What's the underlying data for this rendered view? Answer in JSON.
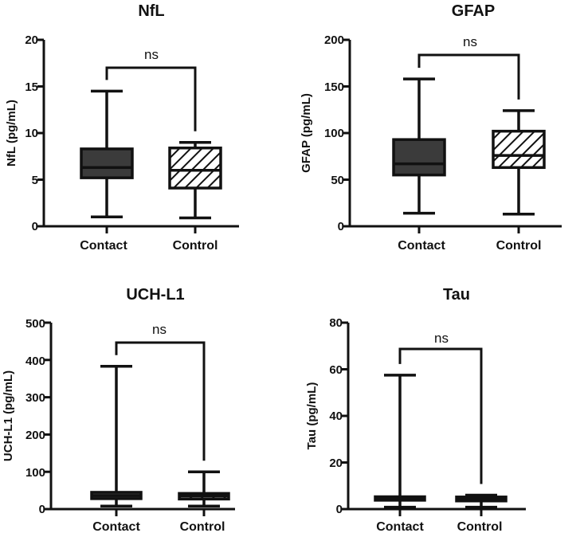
{
  "chart_data": [
    {
      "type": "boxplot",
      "title": "NfL",
      "ylabel": "NfL (pg/mL)",
      "ylim": [
        0,
        20
      ],
      "yticks": [
        0,
        5,
        10,
        15,
        20
      ],
      "ytick_labels": [
        "0",
        "5",
        "10",
        "15",
        "20"
      ],
      "categories": [
        "Contact",
        "Control"
      ],
      "boxes": [
        {
          "name": "Contact",
          "fill": "solid",
          "min": 1.0,
          "q1": 5.2,
          "median": 6.3,
          "q3": 8.3,
          "max": 14.5
        },
        {
          "name": "Control",
          "fill": "hatched",
          "min": 0.9,
          "q1": 4.1,
          "median": 6.0,
          "q3": 8.4,
          "max": 9.0
        }
      ],
      "significance": "ns"
    },
    {
      "type": "boxplot",
      "title": "GFAP",
      "ylabel": "GFAP (pg/mL)",
      "ylim": [
        0,
        200
      ],
      "yticks": [
        0,
        50,
        100,
        150,
        200
      ],
      "ytick_labels": [
        "0",
        "50",
        "100",
        "150",
        "200"
      ],
      "categories": [
        "Contact",
        "Control"
      ],
      "boxes": [
        {
          "name": "Contact",
          "fill": "solid",
          "min": 14,
          "q1": 55,
          "median": 67,
          "q3": 93,
          "max": 158
        },
        {
          "name": "Control",
          "fill": "hatched",
          "min": 13,
          "q1": 63,
          "median": 76,
          "q3": 102,
          "max": 124
        }
      ],
      "significance": "ns"
    },
    {
      "type": "boxplot",
      "title": "UCH-L1",
      "ylabel": "UCH-L1 (pg/mL)",
      "ylim": [
        0,
        500
      ],
      "yticks": [
        0,
        100,
        200,
        300,
        400,
        500
      ],
      "ytick_labels": [
        "0",
        "100",
        "200",
        "300",
        "400",
        "500"
      ],
      "categories": [
        "Contact",
        "Control"
      ],
      "boxes": [
        {
          "name": "Contact",
          "fill": "solid",
          "min": 8,
          "q1": 28,
          "median": 36,
          "q3": 45,
          "max": 383
        },
        {
          "name": "Control",
          "fill": "hatched",
          "min": 8,
          "q1": 27,
          "median": 35,
          "q3": 42,
          "max": 100
        }
      ],
      "significance": "ns"
    },
    {
      "type": "boxplot",
      "title": "Tau",
      "ylabel": "Tau (pg/mL)",
      "ylim": [
        0,
        80
      ],
      "yticks": [
        0,
        20,
        40,
        60,
        80
      ],
      "ytick_labels": [
        "0",
        "20",
        "40",
        "60",
        "80"
      ],
      "categories": [
        "Contact",
        "Control"
      ],
      "boxes": [
        {
          "name": "Contact",
          "fill": "solid",
          "min": 0.8,
          "q1": 3.8,
          "median": 4.5,
          "q3": 5.3,
          "max": 57.5
        },
        {
          "name": "Control",
          "fill": "hatched",
          "min": 0.8,
          "q1": 3.5,
          "median": 4.2,
          "q3": 5.2,
          "max": 6.0
        }
      ],
      "significance": "ns"
    }
  ],
  "colors": {
    "solid_box": "#3b3b3b",
    "line": "#111111",
    "hatch_bg": "#ffffff"
  }
}
